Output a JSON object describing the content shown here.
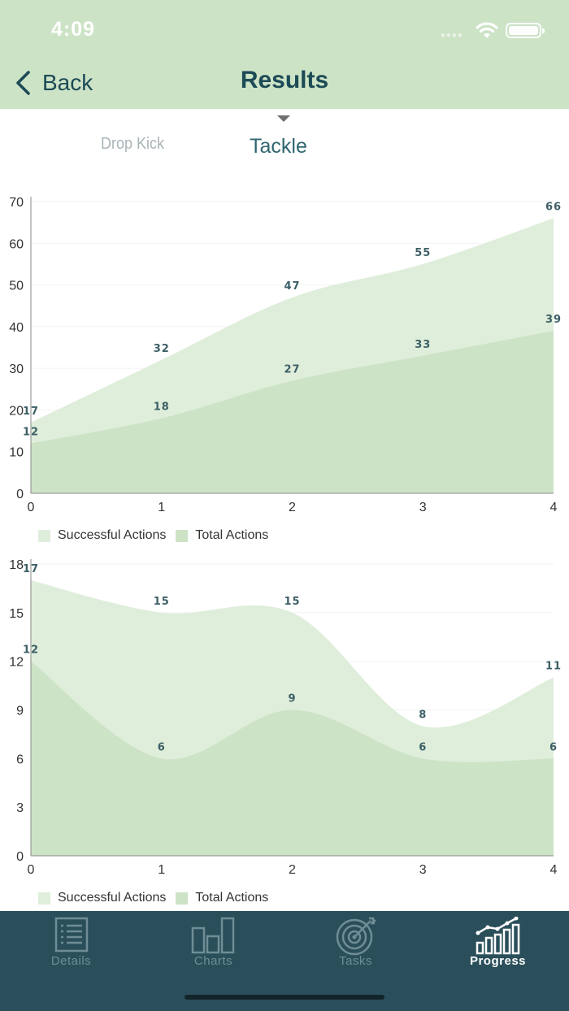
{
  "status": {
    "time": "4:09"
  },
  "nav": {
    "back_label": "Back",
    "title": "Results"
  },
  "segments": {
    "left": "Drop Kick",
    "active": "Tackle"
  },
  "colors": {
    "header": "#cde3c6",
    "successful": "#dfeedb",
    "total": "#cde3c6",
    "tabbar": "#2a4f5a",
    "label": "#3d5f66"
  },
  "legend": {
    "successful": "Successful Actions",
    "total": "Total Actions"
  },
  "chart_data": [
    {
      "type": "area",
      "x": [
        0,
        1,
        2,
        3,
        4
      ],
      "ylim": [
        0,
        70
      ],
      "yticks": [
        0,
        10,
        20,
        30,
        40,
        50,
        60,
        70
      ],
      "series": [
        {
          "name": "Successful Actions",
          "values": [
            17,
            32,
            47,
            55,
            66
          ]
        },
        {
          "name": "Total Actions",
          "values": [
            12,
            18,
            27,
            33,
            39
          ]
        }
      ],
      "legend_position": "bottom-left",
      "grid": true
    },
    {
      "type": "area",
      "x": [
        0,
        1,
        2,
        3,
        4
      ],
      "ylim": [
        0,
        18
      ],
      "yticks": [
        0,
        3,
        6,
        9,
        12,
        15,
        18
      ],
      "series": [
        {
          "name": "Successful Actions",
          "values": [
            17,
            15,
            15,
            8,
            11
          ]
        },
        {
          "name": "Total Actions",
          "values": [
            12,
            6,
            9,
            6,
            6
          ]
        }
      ],
      "legend_position": "bottom-left",
      "grid": true
    }
  ],
  "tabs": [
    {
      "label": "Details",
      "icon": "list-icon"
    },
    {
      "label": "Charts",
      "icon": "bar-chart-icon"
    },
    {
      "label": "Tasks",
      "icon": "target-icon"
    },
    {
      "label": "Progress",
      "icon": "progress-icon",
      "active": true
    }
  ]
}
